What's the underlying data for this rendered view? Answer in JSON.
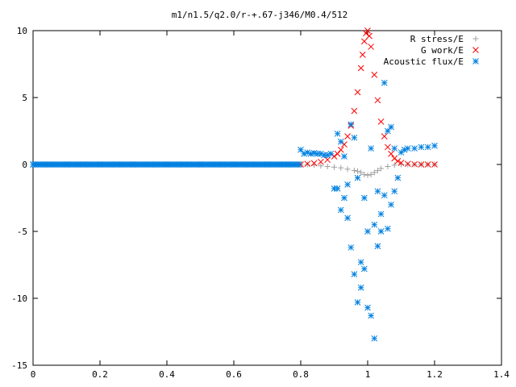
{
  "chart_data": {
    "type": "scatter",
    "title": "m1/n1.5/q2.0/r-+.67-j346/M0.4/512",
    "xlabel": "",
    "ylabel": "",
    "xlim": [
      0,
      1.4
    ],
    "ylim": [
      -15,
      10
    ],
    "x_ticks": [
      0,
      0.2,
      0.4,
      0.6,
      0.8,
      1,
      1.2,
      1.4
    ],
    "y_ticks": [
      -15,
      -10,
      -5,
      0,
      5,
      10
    ],
    "grid": false,
    "legend_position": "top-right",
    "series": [
      {
        "name": "R stress/E",
        "marker": "plus",
        "color": "#a0a0a0",
        "x": [
          0.8,
          0.82,
          0.84,
          0.86,
          0.88,
          0.9,
          0.92,
          0.94,
          0.96,
          0.97,
          0.98,
          0.99,
          1.0,
          1.01,
          1.02,
          1.03,
          1.04,
          1.06,
          1.08,
          1.1,
          1.12,
          1.14,
          1.16,
          1.18,
          1.2
        ],
        "y": [
          0.0,
          0.0,
          -0.05,
          -0.1,
          -0.15,
          -0.2,
          -0.25,
          -0.35,
          -0.45,
          -0.5,
          -0.6,
          -0.75,
          -0.8,
          -0.75,
          -0.6,
          -0.45,
          -0.3,
          -0.15,
          -0.05,
          0.0,
          0.0,
          0.0,
          0.0,
          0.0,
          0.0
        ]
      },
      {
        "name": "G work/E",
        "marker": "cross",
        "color": "#ff0000",
        "x": [
          0.8,
          0.82,
          0.84,
          0.86,
          0.88,
          0.9,
          0.91,
          0.92,
          0.93,
          0.94,
          0.95,
          0.96,
          0.97,
          0.98,
          0.985,
          0.99,
          0.995,
          1.0,
          1.005,
          1.01,
          1.02,
          1.03,
          1.04,
          1.05,
          1.06,
          1.07,
          1.08,
          1.09,
          1.1,
          1.12,
          1.14,
          1.16,
          1.18,
          1.2
        ],
        "y": [
          0.0,
          0.05,
          0.1,
          0.2,
          0.35,
          0.6,
          0.8,
          1.1,
          1.5,
          2.1,
          2.9,
          4.0,
          5.4,
          7.2,
          8.2,
          9.2,
          9.8,
          10.0,
          9.6,
          8.8,
          6.7,
          4.8,
          3.2,
          2.1,
          1.3,
          0.8,
          0.45,
          0.25,
          0.12,
          0.05,
          0.02,
          0.0,
          0.0,
          0.0
        ]
      },
      {
        "name": "Acoustic flux/E",
        "marker": "star",
        "color": "#0080e0",
        "x": [
          0.0,
          0.05,
          0.1,
          0.15,
          0.2,
          0.25,
          0.3,
          0.35,
          0.4,
          0.45,
          0.5,
          0.55,
          0.6,
          0.65,
          0.7,
          0.75,
          0.8,
          0.81,
          0.82,
          0.83,
          0.84,
          0.85,
          0.86,
          0.87,
          0.88,
          0.89,
          0.9,
          0.91,
          0.91,
          0.92,
          0.92,
          0.93,
          0.93,
          0.94,
          0.94,
          0.95,
          0.95,
          0.96,
          0.96,
          0.97,
          0.97,
          0.98,
          0.98,
          0.99,
          0.99,
          1.0,
          1.0,
          1.01,
          1.01,
          1.02,
          1.02,
          1.03,
          1.03,
          1.04,
          1.04,
          1.05,
          1.05,
          1.06,
          1.06,
          1.07,
          1.07,
          1.08,
          1.08,
          1.09,
          1.1,
          1.11,
          1.12,
          1.14,
          1.16,
          1.18,
          1.2
        ],
        "y": [
          0.0,
          0.0,
          0.0,
          0.0,
          0.0,
          0.0,
          0.0,
          0.0,
          0.0,
          0.0,
          0.0,
          0.0,
          0.0,
          0.0,
          0.0,
          0.0,
          1.1,
          0.8,
          0.9,
          0.8,
          0.85,
          0.8,
          0.8,
          0.7,
          0.7,
          0.8,
          -1.8,
          2.3,
          -1.8,
          1.7,
          -3.4,
          -2.5,
          0.6,
          -1.5,
          -4.0,
          -6.2,
          3.0,
          -8.2,
          2.0,
          -10.3,
          -1.0,
          -9.2,
          -7.3,
          -7.8,
          -2.5,
          -10.7,
          -5.0,
          -11.3,
          1.2,
          -13.0,
          -4.5,
          -6.1,
          -2.0,
          -3.7,
          -5.0,
          -2.3,
          6.1,
          -4.8,
          2.5,
          -3.0,
          2.8,
          -2.0,
          1.2,
          -1.0,
          0.9,
          1.1,
          1.2,
          1.2,
          1.3,
          1.3,
          1.4
        ]
      }
    ]
  }
}
